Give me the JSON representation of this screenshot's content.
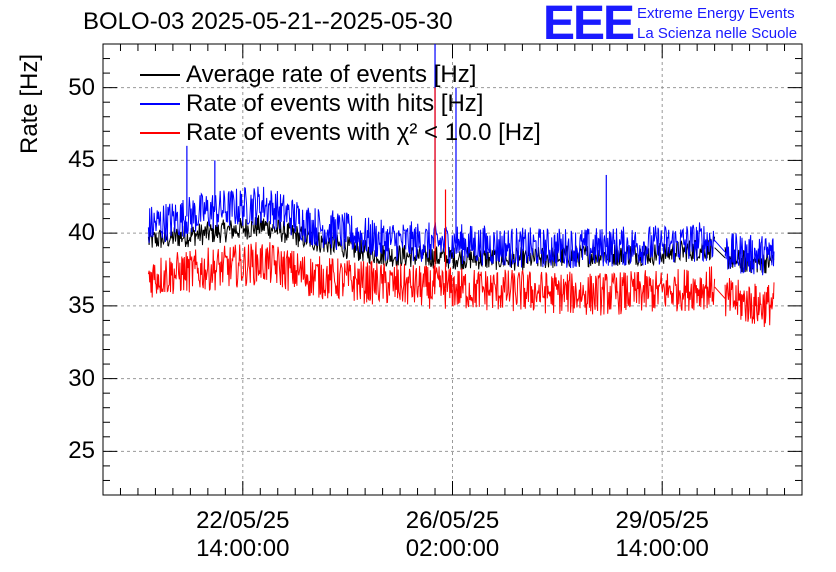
{
  "chart_data": {
    "type": "line",
    "title": "BOLO-03 2025-05-21--2025-05-30",
    "ylabel": "Rate [Hz]",
    "xlabel": "",
    "ylim": [
      22,
      53
    ],
    "xlim": [
      0,
      100
    ],
    "yticks": [
      25,
      30,
      35,
      40,
      45,
      50
    ],
    "yticks_text": [
      "25",
      "30",
      "35",
      "40",
      "45",
      "50"
    ],
    "xticks": [
      {
        "pos": 20,
        "line1": "22/05/25",
        "line2": "14:00:00"
      },
      {
        "pos": 50,
        "line1": "26/05/25",
        "line2": "02:00:00"
      },
      {
        "pos": 80,
        "line1": "29/05/25",
        "line2": "14:00:00"
      }
    ],
    "legend": "top-left",
    "grid": true,
    "series": [
      {
        "name": "Average rate of events [Hz]",
        "color": "#000000",
        "x": [
          6.5,
          15,
          23,
          30,
          40,
          50,
          60,
          70,
          80,
          87.5,
          89,
          92,
          94.5,
          96
        ],
        "y": [
          39.5,
          40.0,
          40.5,
          39.5,
          38.5,
          38.3,
          38.2,
          38.5,
          38.6,
          39.0,
          38.3,
          38.0,
          38.0,
          38.1
        ]
      },
      {
        "name": "Rate of events with hits [Hz]",
        "color": "#0000ff",
        "x": [
          6.5,
          15,
          23,
          30,
          40,
          50,
          60,
          70,
          80,
          87.5,
          89,
          92,
          94.5,
          96
        ],
        "y": [
          40.5,
          41.5,
          42.0,
          40.5,
          39.5,
          39.3,
          39.0,
          39.0,
          39.2,
          39.5,
          38.7,
          38.5,
          38.5,
          38.6
        ]
      },
      {
        "name": "Rate of events with χ² < 10.0 [Hz]",
        "color": "#ff0000",
        "x": [
          6.5,
          15,
          23,
          30,
          40,
          50,
          60,
          70,
          80,
          87.5,
          89,
          92,
          94.5,
          96
        ],
        "y": [
          37.0,
          37.5,
          38.0,
          37.0,
          36.5,
          36.2,
          36.0,
          35.8,
          36.0,
          36.3,
          35.5,
          35.2,
          35.0,
          35.2
        ]
      }
    ],
    "annotations": [
      "spike near 26/05/25 reaching ~53 Hz"
    ]
  },
  "header": {
    "logo": "EEE",
    "org_line1": "Extreme Energy Events",
    "org_line2": "La Scienza nelle Scuole"
  },
  "colors": {
    "brand": "#1a1aff",
    "grid": "#9a9a9a"
  }
}
